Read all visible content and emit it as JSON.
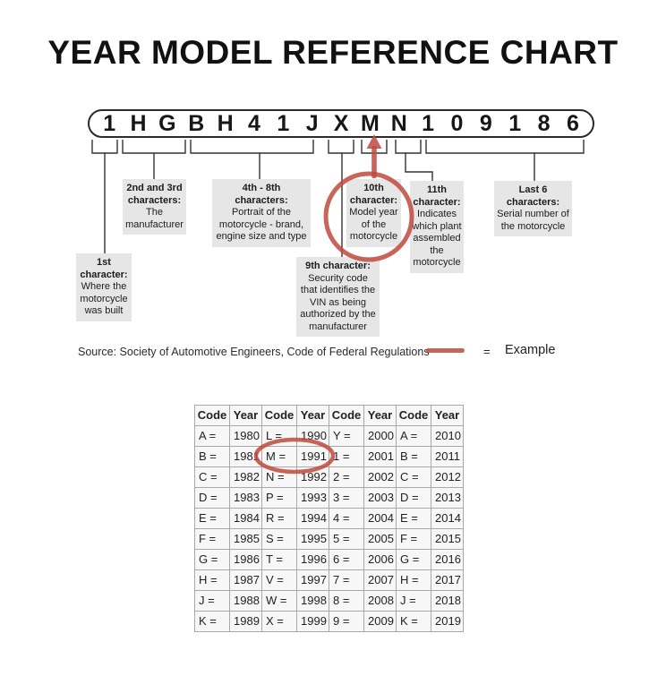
{
  "title": "YEAR MODEL REFERENCE CHART",
  "vin": "1HGBH41JXMN109186",
  "callouts": {
    "first": {
      "heading": "1st\ncharacter:",
      "body": "Where the\nmotorcycle\nwas built"
    },
    "second_third": {
      "heading": "2nd and 3rd\ncharacters:",
      "body": "The\nmanufacturer"
    },
    "fourth_eighth": {
      "heading": "4th - 8th\ncharacters:",
      "body": "Portrait of the\nmotorcycle - brand,\nengine size and type"
    },
    "ninth": {
      "heading": "9th character:",
      "body": "Security code\nthat identifies the\nVIN as being\nauthorized by the\nmanufacturer"
    },
    "tenth": {
      "heading": "10th\ncharacter:",
      "body": "Model year\nof the\nmotorcycle"
    },
    "eleventh": {
      "heading": "11th\ncharacter:",
      "body": "Indicates\nwhich plant\nassembled\nthe\nmotorcycle"
    },
    "last_six": {
      "heading": "Last 6\ncharacters:",
      "body": "Serial number of\nthe motorcycle"
    }
  },
  "source_line": "Source:  Society of Automotive Engineers, Code of Federal Regulations",
  "legend": {
    "equals_sign": "=",
    "label": "Example"
  },
  "table": {
    "headers": [
      "Code",
      "Year",
      "Code",
      "Year",
      "Code",
      "Year",
      "Code",
      "Year"
    ],
    "rows": [
      [
        "A =",
        "1980",
        "L =",
        "1990",
        "Y =",
        "2000",
        "A =",
        "2010"
      ],
      [
        "B =",
        "1981",
        "M =",
        "1991",
        "1 =",
        "2001",
        "B =",
        "2011"
      ],
      [
        "C =",
        "1982",
        "N =",
        "1992",
        "2 =",
        "2002",
        "C =",
        "2012"
      ],
      [
        "D =",
        "1983",
        "P =",
        "1993",
        "3 =",
        "2003",
        "D =",
        "2013"
      ],
      [
        "E =",
        "1984",
        "R =",
        "1994",
        "4 =",
        "2004",
        "E =",
        "2014"
      ],
      [
        "F =",
        "1985",
        "S =",
        "1995",
        "5 =",
        "2005",
        "F =",
        "2015"
      ],
      [
        "G =",
        "1986",
        "T =",
        "1996",
        "6 =",
        "2006",
        "G =",
        "2016"
      ],
      [
        "H =",
        "1987",
        "V =",
        "1997",
        "7 =",
        "2007",
        "H =",
        "2017"
      ],
      [
        "J =",
        "1988",
        "W =",
        "1998",
        "8 =",
        "2008",
        "J =",
        "2018"
      ],
      [
        "K =",
        "1989",
        "X =",
        "1999",
        "9 =",
        "2009",
        "K =",
        "2019"
      ]
    ]
  },
  "colors": {
    "accent_red": "#c0493e",
    "box_gray": "#e6e6e6",
    "line_color": "#333333",
    "table_border": "#a9a9a9"
  }
}
